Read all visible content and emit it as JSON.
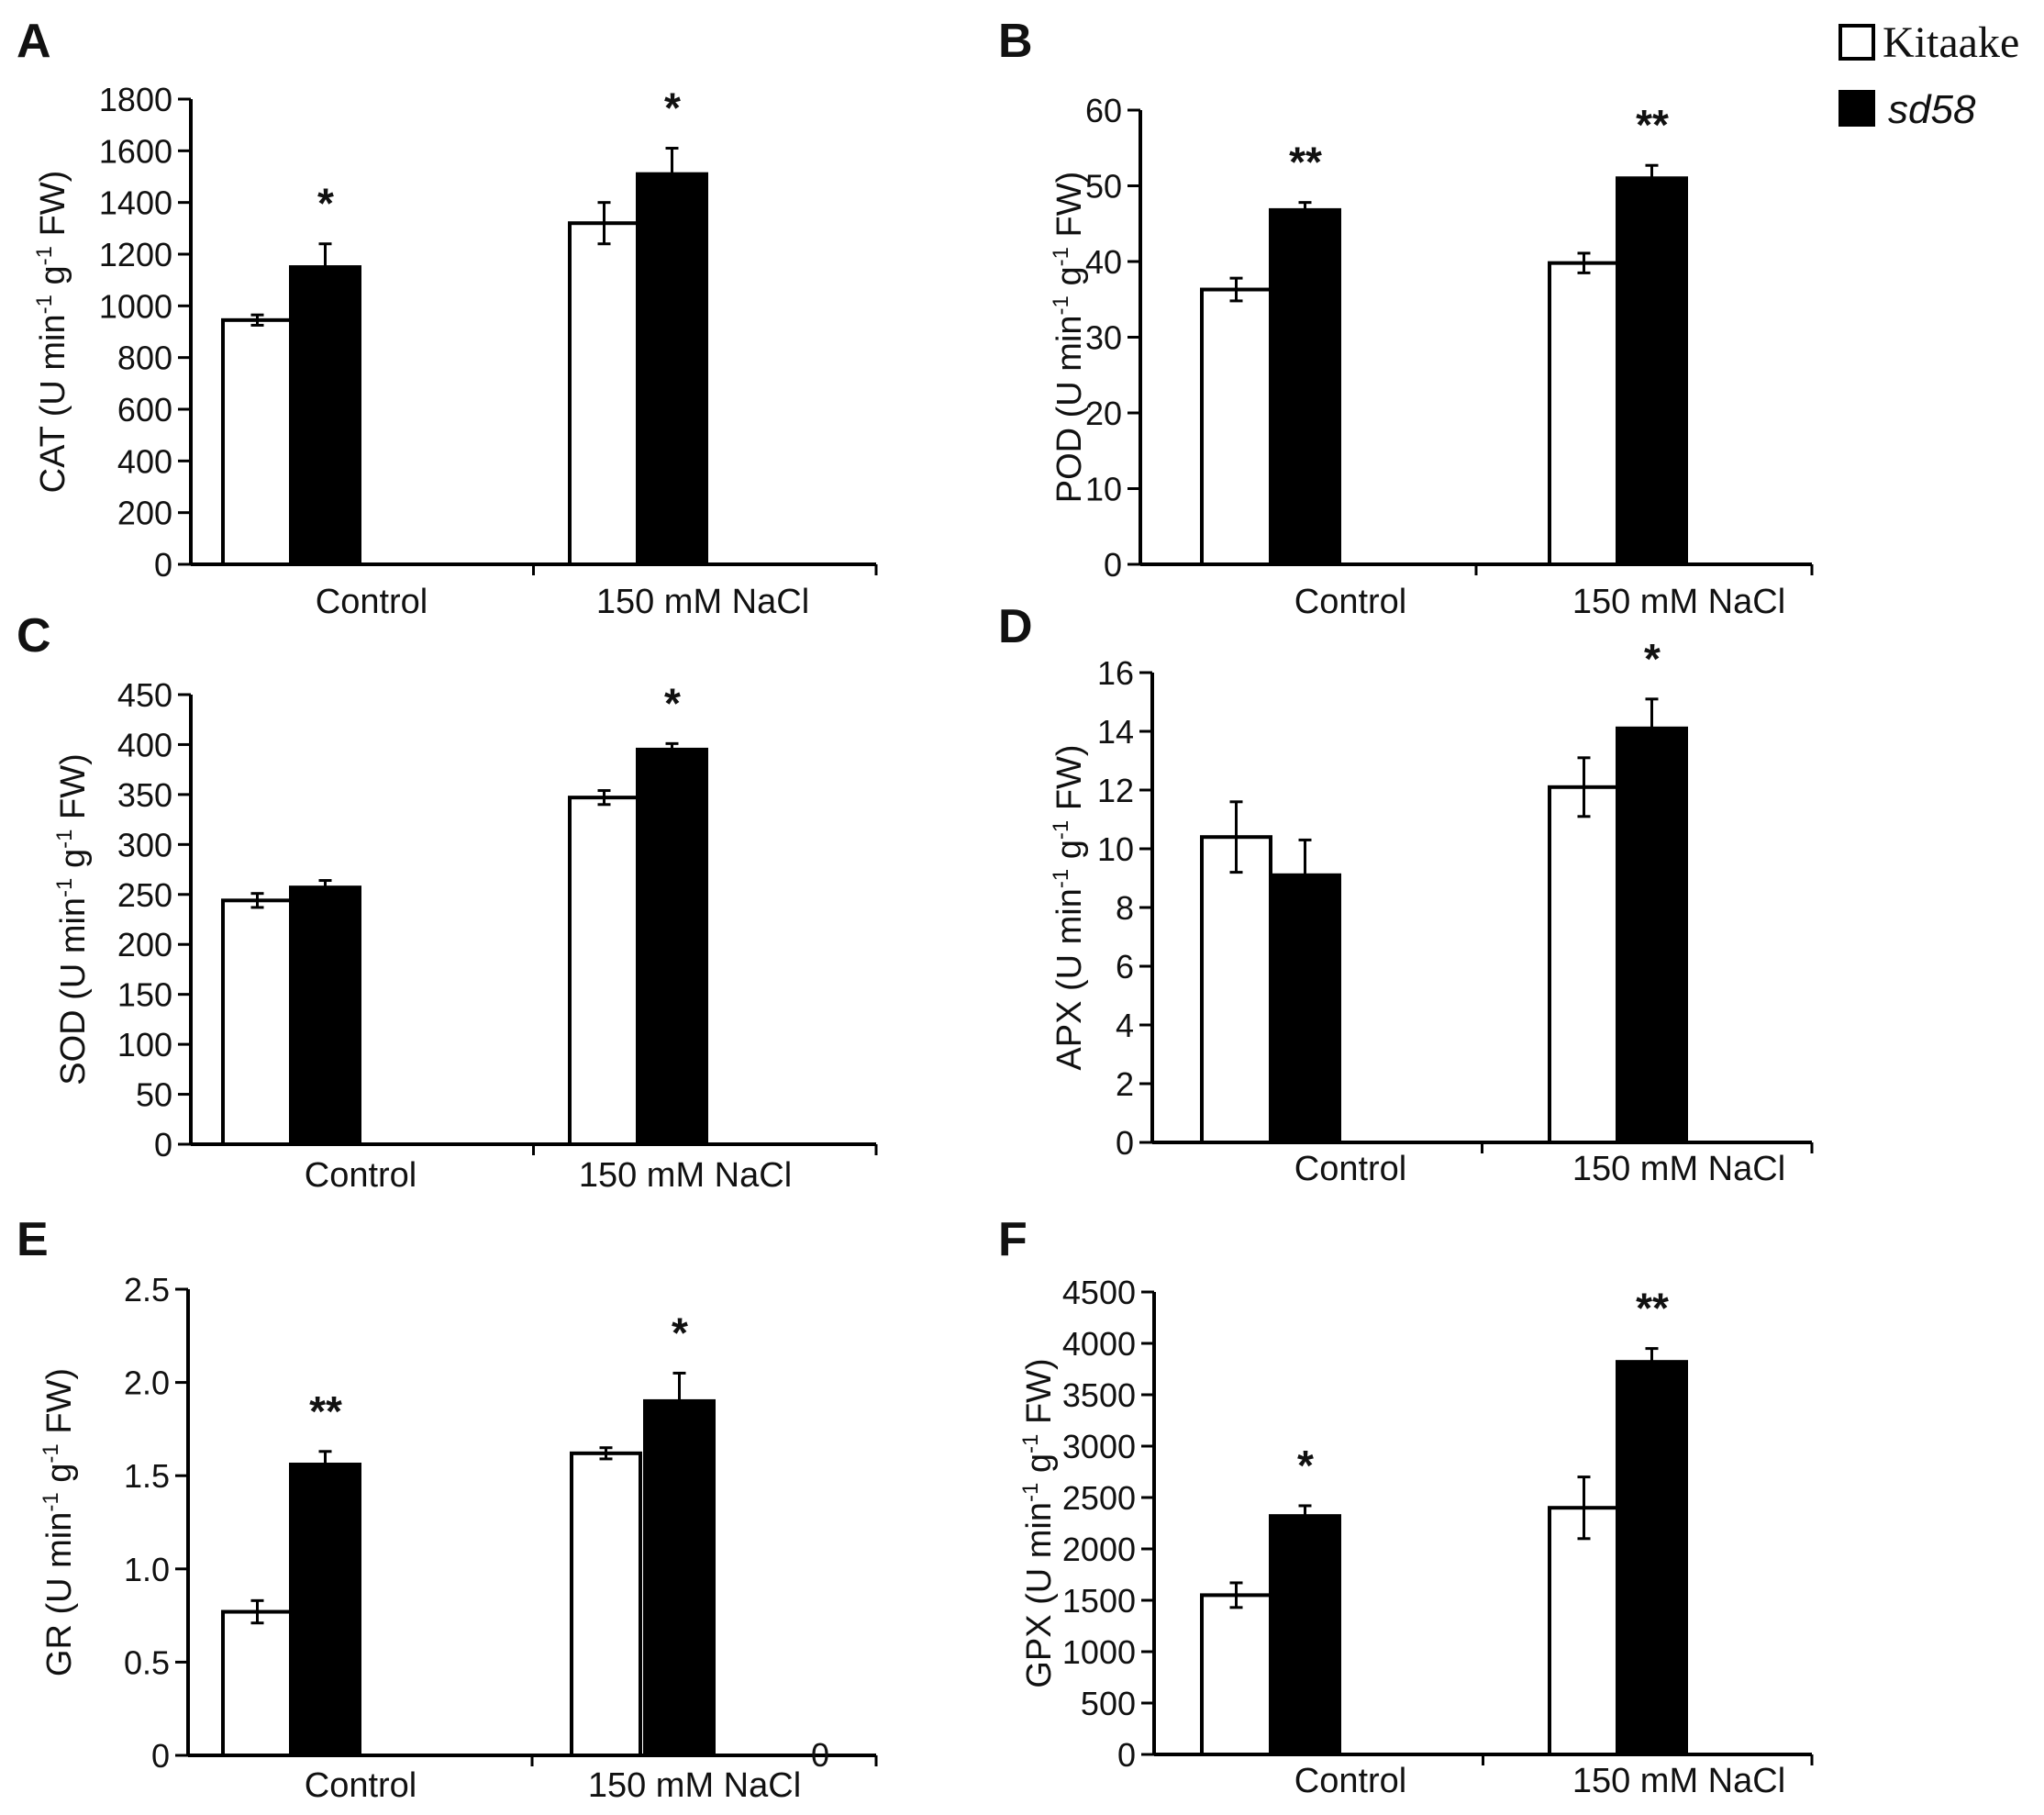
{
  "legend": {
    "items": [
      {
        "label": "Kitaake",
        "color": "#ffffff",
        "italic": false
      },
      {
        "label": "sd58",
        "color": "#000000",
        "italic": true
      }
    ]
  },
  "colors": {
    "kitaake": "#ffffff",
    "sd58": "#000000",
    "stroke": "#000000"
  },
  "chart_data": [
    {
      "panel": "A",
      "type": "bar",
      "ylabel": "CAT (U min-1 g-1 FW)",
      "ylabel_parts": [
        "CAT (U min",
        "-1",
        " g",
        "-1",
        " FW)"
      ],
      "categories": [
        "Control",
        "150  mM NaCl"
      ],
      "ylim": [
        0,
        1800
      ],
      "yticks": [
        0,
        200,
        400,
        600,
        800,
        1000,
        1200,
        1400,
        1600,
        1800
      ],
      "series": [
        {
          "name": "Kitaake",
          "values": [
            945,
            1320
          ],
          "errors": [
            20,
            80
          ]
        },
        {
          "name": "sd58",
          "values": [
            1150,
            1510
          ],
          "errors": [
            90,
            100
          ]
        }
      ],
      "annotations": [
        "*",
        "*"
      ]
    },
    {
      "panel": "B",
      "type": "bar",
      "ylabel": "POD (U min-1 g-1 FW)",
      "ylabel_parts": [
        "POD (U min",
        "-1",
        " g",
        "-1",
        " FW)"
      ],
      "categories": [
        "Control",
        "150  mM NaCl"
      ],
      "ylim": [
        0,
        60
      ],
      "yticks": [
        0,
        10,
        20,
        30,
        40,
        50,
        60
      ],
      "series": [
        {
          "name": "Kitaake",
          "values": [
            36.3,
            39.8
          ],
          "errors": [
            1.5,
            1.3
          ]
        },
        {
          "name": "sd58",
          "values": [
            46.8,
            51.0
          ],
          "errors": [
            1.0,
            1.7
          ]
        }
      ],
      "annotations": [
        "**",
        "**"
      ]
    },
    {
      "panel": "C",
      "type": "bar",
      "ylabel": "SOD (U min-1 g-1 FW)",
      "ylabel_parts": [
        "SOD (U min",
        "-1",
        " g",
        "-1",
        " FW)"
      ],
      "categories": [
        "Control",
        "150  mM NaCl"
      ],
      "ylim": [
        0,
        450
      ],
      "yticks": [
        0,
        50,
        100,
        150,
        200,
        250,
        300,
        350,
        400,
        450
      ],
      "series": [
        {
          "name": "Kitaake",
          "values": [
            244,
            347
          ],
          "errors": [
            7,
            7
          ]
        },
        {
          "name": "sd58",
          "values": [
            257,
            395
          ],
          "errors": [
            7,
            6
          ]
        }
      ],
      "annotations": [
        "",
        "*"
      ]
    },
    {
      "panel": "D",
      "type": "bar",
      "ylabel": "APX (U min-1 g-1 FW)",
      "ylabel_parts": [
        "APX (U min",
        "-1",
        " g",
        "-1",
        " FW)"
      ],
      "categories": [
        "Control",
        "150  mM NaCl"
      ],
      "ylim": [
        0,
        16
      ],
      "yticks": [
        0,
        2,
        4,
        6,
        8,
        10,
        12,
        14,
        16
      ],
      "series": [
        {
          "name": "Kitaake",
          "values": [
            10.4,
            12.1
          ],
          "errors": [
            1.2,
            1.0
          ]
        },
        {
          "name": "sd58",
          "values": [
            9.1,
            14.1
          ],
          "errors": [
            1.2,
            1.0
          ]
        }
      ],
      "annotations": [
        "",
        "*"
      ]
    },
    {
      "panel": "E",
      "type": "bar",
      "ylabel": "GR (U min-1 g-1 FW)",
      "ylabel_parts": [
        "GR (U min",
        "-1",
        " g",
        "-1",
        " FW)"
      ],
      "categories": [
        "Control",
        "150  mM NaCl"
      ],
      "ylim": [
        0,
        2.5
      ],
      "yticks": [
        0,
        0.5,
        1.0,
        1.5,
        2.0,
        2.5
      ],
      "ytick_labels": [
        "0",
        "0.5",
        "1.0",
        "1.5",
        "2.0",
        "2.5"
      ],
      "extra_label": "0",
      "series": [
        {
          "name": "Kitaake",
          "values": [
            0.77,
            1.62
          ],
          "errors": [
            0.06,
            0.03
          ]
        },
        {
          "name": "sd58",
          "values": [
            1.56,
            1.9
          ],
          "errors": [
            0.07,
            0.15
          ]
        }
      ],
      "annotations": [
        "**",
        "*"
      ]
    },
    {
      "panel": "F",
      "type": "bar",
      "ylabel": "GPX (U min-1 g-1 FW)",
      "ylabel_parts": [
        "GPX (U min",
        "-1",
        " g",
        "-1",
        " FW)"
      ],
      "categories": [
        "Control",
        "150  mM NaCl"
      ],
      "ylim": [
        0,
        4500
      ],
      "yticks": [
        0,
        500,
        1000,
        1500,
        2000,
        2500,
        3000,
        3500,
        4000,
        4500
      ],
      "series": [
        {
          "name": "Kitaake",
          "values": [
            1550,
            2400
          ],
          "errors": [
            120,
            300
          ]
        },
        {
          "name": "sd58",
          "values": [
            2320,
            3820
          ],
          "errors": [
            100,
            130
          ]
        }
      ],
      "annotations": [
        "*",
        "**"
      ]
    }
  ]
}
